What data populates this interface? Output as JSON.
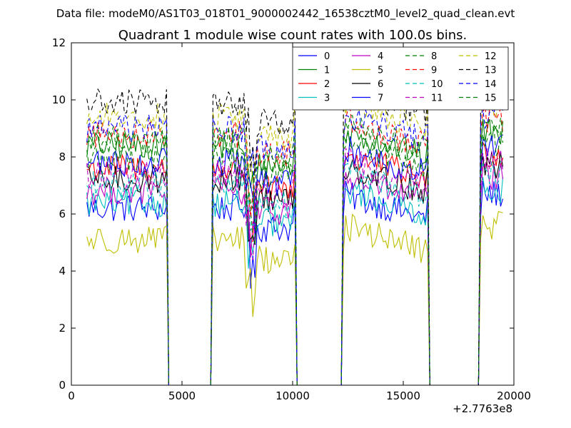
{
  "header_note": "Data file: modeM0/AS1T03_018T01_9000002442_16538cztM0_level2_quad_clean.evt",
  "chart_data": {
    "type": "line",
    "title": "Quadrant 1 module wise count rates with 100.0s bins.",
    "xlabel": "",
    "ylabel": "",
    "xlim": [
      0,
      20000
    ],
    "ylim": [
      0,
      12
    ],
    "x_offset_label": "+2.7763e8",
    "grid": false,
    "legend_position": "top-right",
    "x_ticks": [
      {
        "value": 0,
        "label": "0"
      },
      {
        "value": 5000,
        "label": "5000"
      },
      {
        "value": 10000,
        "label": "10000"
      },
      {
        "value": 15000,
        "label": "15000"
      },
      {
        "value": 20000,
        "label": "20000"
      }
    ],
    "y_ticks": [
      {
        "value": 0,
        "label": "0"
      },
      {
        "value": 2,
        "label": "2"
      },
      {
        "value": 4,
        "label": "4"
      },
      {
        "value": 6,
        "label": "6"
      },
      {
        "value": 8,
        "label": "8"
      },
      {
        "value": 10,
        "label": "10"
      },
      {
        "value": 12,
        "label": "12"
      }
    ],
    "bin_width": 100,
    "x_start": 700,
    "x_end": 19500,
    "active_intervals": [
      [
        700,
        4300
      ],
      [
        6400,
        10100
      ],
      [
        12300,
        16100
      ],
      [
        18500,
        19500
      ]
    ],
    "series": [
      {
        "name": "0",
        "color": "#0000ff",
        "dash": "solid",
        "mean": 6.2
      },
      {
        "name": "1",
        "color": "#008000",
        "dash": "solid",
        "mean": 8.4
      },
      {
        "name": "2",
        "color": "#ff0000",
        "dash": "solid",
        "mean": 7.6
      },
      {
        "name": "3",
        "color": "#00bfbf",
        "dash": "solid",
        "mean": 6.4
      },
      {
        "name": "4",
        "color": "#bf00bf",
        "dash": "solid",
        "mean": 6.8
      },
      {
        "name": "5",
        "color": "#bfbf00",
        "dash": "solid",
        "mean": 5.1
      },
      {
        "name": "6",
        "color": "#000000",
        "dash": "solid",
        "mean": 7.2
      },
      {
        "name": "7",
        "color": "#0000ff",
        "dash": "solid",
        "mean": 7.8
      },
      {
        "name": "8",
        "color": "#008000",
        "dash": "dashed",
        "mean": 8.0
      },
      {
        "name": "9",
        "color": "#ff0000",
        "dash": "dashed",
        "mean": 8.8
      },
      {
        "name": "10",
        "color": "#00bfbf",
        "dash": "dashed",
        "mean": 7.0
      },
      {
        "name": "11",
        "color": "#bf00bf",
        "dash": "dashed",
        "mean": 7.4
      },
      {
        "name": "12",
        "color": "#bfbf00",
        "dash": "dashed",
        "mean": 9.4
      },
      {
        "name": "13",
        "color": "#000000",
        "dash": "dashed",
        "mean": 9.9
      },
      {
        "name": "14",
        "color": "#0000ff",
        "dash": "dashed",
        "mean": 9.0
      },
      {
        "name": "15",
        "color": "#008000",
        "dash": "dashed",
        "mean": 8.6
      }
    ]
  }
}
